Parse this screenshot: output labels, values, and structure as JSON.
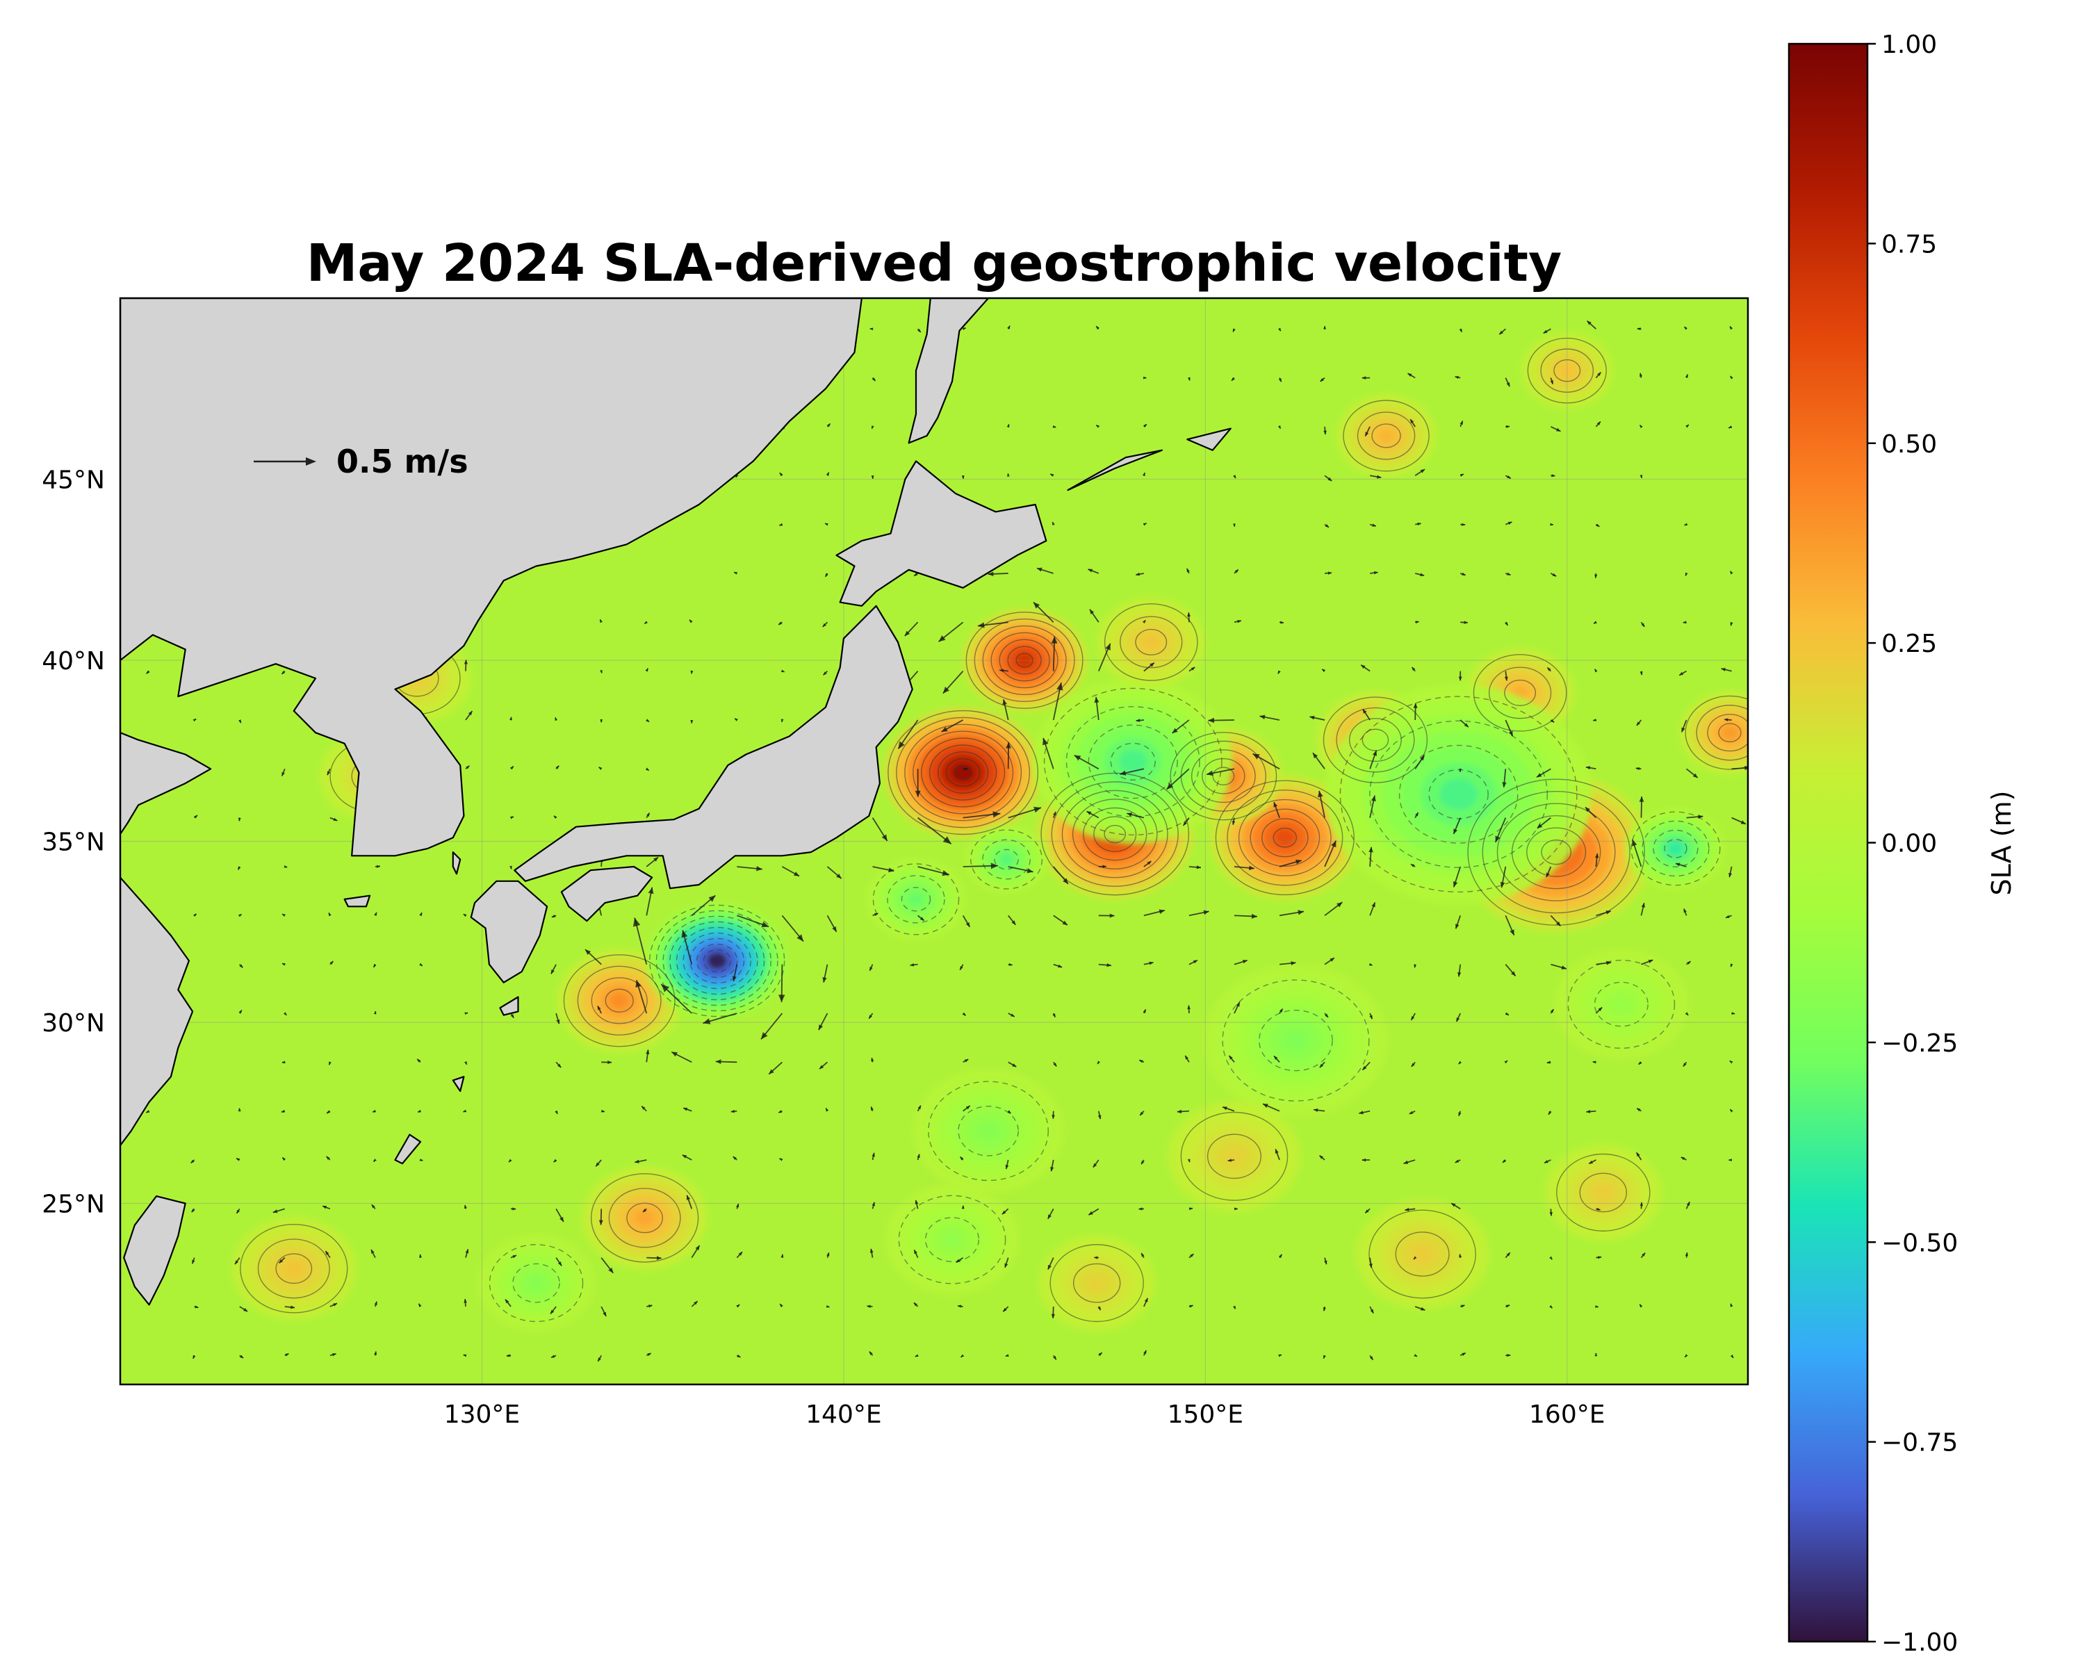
{
  "title": "May 2024 SLA-derived geostrophic velocity",
  "map": {
    "extent": {
      "lon": [
        120,
        165
      ],
      "lat": [
        20,
        50
      ]
    },
    "x_ticks": [
      {
        "lon": 130,
        "label": "130°E"
      },
      {
        "lon": 140,
        "label": "140°E"
      },
      {
        "lon": 150,
        "label": "150°E"
      },
      {
        "lon": 160,
        "label": "160°E"
      }
    ],
    "y_ticks": [
      {
        "lat": 45,
        "label": "45°N"
      },
      {
        "lat": 40,
        "label": "40°N"
      },
      {
        "lat": 35,
        "label": "35°N"
      },
      {
        "lat": 30,
        "label": "30°N"
      },
      {
        "lat": 25,
        "label": "25°N"
      }
    ],
    "land_color": "#d3d3d3",
    "gridlines": true,
    "field_colormap": "turbo"
  },
  "quiver_key": {
    "label": "0.5 m/s",
    "speed": 0.5
  },
  "colorbar": {
    "label": "SLA (m)",
    "range": [
      -1.0,
      1.0
    ],
    "ticks": [
      {
        "value": 1.0,
        "label": "1.00"
      },
      {
        "value": 0.75,
        "label": "0.75"
      },
      {
        "value": 0.5,
        "label": "0.50"
      },
      {
        "value": 0.25,
        "label": "0.25"
      },
      {
        "value": 0.0,
        "label": "0.00"
      },
      {
        "value": -0.25,
        "label": "−0.25"
      },
      {
        "value": -0.5,
        "label": "−0.50"
      },
      {
        "value": -0.75,
        "label": "−0.75"
      },
      {
        "value": -1.0,
        "label": "−1.00"
      }
    ],
    "colors": [
      "#30123b",
      "#4662d7",
      "#36aaf9",
      "#1ae4b6",
      "#72fe5e",
      "#a4fc3c",
      "#c7ef34",
      "#f9bd39",
      "#fb8022",
      "#e4460a",
      "#b11b01",
      "#7a0403"
    ]
  },
  "eddies": [
    {
      "lon": 143.3,
      "lat": 36.9,
      "sla": 0.92,
      "r": 1.9
    },
    {
      "lon": 145.0,
      "lat": 40.0,
      "sla": 0.72,
      "r": 1.5
    },
    {
      "lon": 147.5,
      "lat": 35.2,
      "sla": 0.68,
      "r": 1.9
    },
    {
      "lon": 152.2,
      "lat": 35.1,
      "sla": 0.62,
      "r": 1.8
    },
    {
      "lon": 150.5,
      "lat": 36.8,
      "sla": 0.5,
      "r": 1.4
    },
    {
      "lon": 159.7,
      "lat": 34.7,
      "sla": 0.58,
      "r": 2.3
    },
    {
      "lon": 154.7,
      "lat": 37.8,
      "sla": 0.42,
      "r": 1.4
    },
    {
      "lon": 158.7,
      "lat": 39.1,
      "sla": 0.32,
      "r": 1.3
    },
    {
      "lon": 164.5,
      "lat": 38.0,
      "sla": 0.38,
      "r": 1.2
    },
    {
      "lon": 133.8,
      "lat": 30.6,
      "sla": 0.42,
      "r": 1.5
    },
    {
      "lon": 134.5,
      "lat": 24.6,
      "sla": 0.34,
      "r": 1.5
    },
    {
      "lon": 124.8,
      "lat": 23.2,
      "sla": 0.25,
      "r": 1.5
    },
    {
      "lon": 136.5,
      "lat": 31.7,
      "sla": -0.98,
      "r": 1.7
    },
    {
      "lon": 148.0,
      "lat": 37.2,
      "sla": -0.36,
      "r": 2.4
    },
    {
      "lon": 142.0,
      "lat": 33.4,
      "sla": -0.3,
      "r": 1.2
    },
    {
      "lon": 144.5,
      "lat": 34.5,
      "sla": -0.34,
      "r": 1.0
    },
    {
      "lon": 157.0,
      "lat": 36.3,
      "sla": -0.36,
      "r": 3.2
    },
    {
      "lon": 163.0,
      "lat": 34.8,
      "sla": -0.42,
      "r": 1.2
    },
    {
      "lon": 152.5,
      "lat": 29.5,
      "sla": -0.22,
      "r": 2.2
    },
    {
      "lon": 144.0,
      "lat": 27.0,
      "sla": -0.2,
      "r": 1.8
    },
    {
      "lon": 131.5,
      "lat": 22.8,
      "sla": -0.2,
      "r": 1.4
    },
    {
      "lon": 127.0,
      "lat": 36.8,
      "sla": 0.2,
      "r": 1.3
    },
    {
      "lon": 128.2,
      "lat": 39.5,
      "sla": 0.22,
      "r": 1.3
    },
    {
      "lon": 147.0,
      "lat": 22.8,
      "sla": 0.2,
      "r": 1.4
    },
    {
      "lon": 150.8,
      "lat": 26.3,
      "sla": 0.2,
      "r": 1.6
    },
    {
      "lon": 156.0,
      "lat": 23.6,
      "sla": 0.22,
      "r": 1.6
    },
    {
      "lon": 161.0,
      "lat": 25.3,
      "sla": 0.22,
      "r": 1.4
    },
    {
      "lon": 155.0,
      "lat": 46.2,
      "sla": 0.3,
      "r": 1.2
    },
    {
      "lon": 160.0,
      "lat": 48.0,
      "sla": 0.26,
      "r": 1.1
    },
    {
      "lon": 148.5,
      "lat": 40.5,
      "sla": 0.25,
      "r": 1.3
    },
    {
      "lon": 143.0,
      "lat": 24.0,
      "sla": -0.16,
      "r": 1.6
    },
    {
      "lon": 161.5,
      "lat": 30.5,
      "sla": -0.14,
      "r": 1.6
    }
  ],
  "land": [
    {
      "name": "asia-mainland",
      "pts": [
        [
          120,
          50
        ],
        [
          140.5,
          50
        ],
        [
          140.3,
          48.5
        ],
        [
          139.5,
          47.5
        ],
        [
          138.5,
          46.6
        ],
        [
          137.5,
          45.5
        ],
        [
          136,
          44.3
        ],
        [
          134,
          43.2
        ],
        [
          132.5,
          42.8
        ],
        [
          131.5,
          42.6
        ],
        [
          130.6,
          42.2
        ],
        [
          129.9,
          41.1
        ],
        [
          129.5,
          40.4
        ],
        [
          128.6,
          39.6
        ],
        [
          127.6,
          39.2
        ],
        [
          128.3,
          38.6
        ],
        [
          129.4,
          37.1
        ],
        [
          129.5,
          35.7
        ],
        [
          129.2,
          35.1
        ],
        [
          128.5,
          34.8
        ],
        [
          127.6,
          34.6
        ],
        [
          126.4,
          34.6
        ],
        [
          126.5,
          35.8
        ],
        [
          126.6,
          36.9
        ],
        [
          126.2,
          37.7
        ],
        [
          125.4,
          38.0
        ],
        [
          124.8,
          38.6
        ],
        [
          125.4,
          39.5
        ],
        [
          124.3,
          39.9
        ],
        [
          122.8,
          39.4
        ],
        [
          121.6,
          39.0
        ],
        [
          121.8,
          40.3
        ],
        [
          120.9,
          40.7
        ],
        [
          120,
          40.0
        ]
      ]
    },
    {
      "name": "china-south",
      "pts": [
        [
          120,
          38
        ],
        [
          120.5,
          37.8
        ],
        [
          121.8,
          37.4
        ],
        [
          122.5,
          37.0
        ],
        [
          121.8,
          36.6
        ],
        [
          120.5,
          36.0
        ],
        [
          120.2,
          35.5
        ],
        [
          120,
          35.2
        ]
      ]
    },
    {
      "name": "china-coast",
      "pts": [
        [
          120,
          34.0
        ],
        [
          120.8,
          33.1
        ],
        [
          121.4,
          32.4
        ],
        [
          121.9,
          31.7
        ],
        [
          121.6,
          30.9
        ],
        [
          122.0,
          30.3
        ],
        [
          121.6,
          29.3
        ],
        [
          121.4,
          28.5
        ],
        [
          120.8,
          27.8
        ],
        [
          120.3,
          27.0
        ],
        [
          120,
          26.6
        ]
      ]
    },
    {
      "name": "honshu",
      "pts": [
        [
          130.9,
          34.2
        ],
        [
          131.6,
          34.7
        ],
        [
          132.6,
          35.4
        ],
        [
          133.8,
          35.5
        ],
        [
          135.3,
          35.6
        ],
        [
          136.0,
          35.9
        ],
        [
          136.8,
          37.1
        ],
        [
          137.3,
          37.4
        ],
        [
          138.5,
          37.9
        ],
        [
          139.5,
          38.7
        ],
        [
          139.9,
          39.8
        ],
        [
          140.0,
          40.6
        ],
        [
          140.9,
          41.5
        ],
        [
          141.5,
          40.5
        ],
        [
          141.9,
          39.2
        ],
        [
          141.5,
          38.3
        ],
        [
          140.9,
          37.6
        ],
        [
          141.0,
          36.6
        ],
        [
          140.7,
          35.7
        ],
        [
          139.8,
          35.1
        ],
        [
          139.1,
          34.7
        ],
        [
          138.3,
          34.6
        ],
        [
          137.0,
          34.6
        ],
        [
          136.0,
          33.8
        ],
        [
          135.2,
          33.7
        ],
        [
          135.0,
          34.6
        ],
        [
          134.0,
          34.6
        ],
        [
          132.5,
          34.3
        ],
        [
          131.2,
          33.9
        ]
      ]
    },
    {
      "name": "hokkaido",
      "pts": [
        [
          139.9,
          41.6
        ],
        [
          140.3,
          42.6
        ],
        [
          139.8,
          42.9
        ],
        [
          140.5,
          43.3
        ],
        [
          141.3,
          43.5
        ],
        [
          141.7,
          45.0
        ],
        [
          142.0,
          45.5
        ],
        [
          143.1,
          44.6
        ],
        [
          144.2,
          44.1
        ],
        [
          145.3,
          44.3
        ],
        [
          145.6,
          43.3
        ],
        [
          144.8,
          42.9
        ],
        [
          143.3,
          42.0
        ],
        [
          141.8,
          42.5
        ],
        [
          140.9,
          41.9
        ],
        [
          140.5,
          41.5
        ]
      ]
    },
    {
      "name": "sakhalin",
      "pts": [
        [
          141.8,
          46.0
        ],
        [
          142.0,
          46.8
        ],
        [
          142.0,
          48.0
        ],
        [
          142.3,
          49.0
        ],
        [
          142.4,
          50.0
        ],
        [
          144.0,
          50.0
        ],
        [
          143.2,
          49.1
        ],
        [
          143.0,
          47.7
        ],
        [
          142.6,
          46.7
        ],
        [
          142.3,
          46.2
        ]
      ]
    },
    {
      "name": "kyushu",
      "pts": [
        [
          129.8,
          33.3
        ],
        [
          130.4,
          33.9
        ],
        [
          131.0,
          33.9
        ],
        [
          131.8,
          33.2
        ],
        [
          131.6,
          32.4
        ],
        [
          131.1,
          31.4
        ],
        [
          130.6,
          31.1
        ],
        [
          130.2,
          31.6
        ],
        [
          130.1,
          32.6
        ],
        [
          129.7,
          32.9
        ]
      ]
    },
    {
      "name": "shikoku",
      "pts": [
        [
          132.2,
          33.6
        ],
        [
          133.0,
          34.2
        ],
        [
          134.2,
          34.3
        ],
        [
          134.7,
          34.0
        ],
        [
          134.3,
          33.5
        ],
        [
          133.4,
          33.3
        ],
        [
          132.9,
          32.8
        ],
        [
          132.4,
          33.2
        ]
      ]
    },
    {
      "name": "taiwan",
      "pts": [
        [
          121.0,
          25.2
        ],
        [
          121.8,
          25.0
        ],
        [
          121.6,
          24.1
        ],
        [
          121.2,
          23.0
        ],
        [
          120.8,
          22.2
        ],
        [
          120.4,
          22.7
        ],
        [
          120.1,
          23.5
        ],
        [
          120.4,
          24.4
        ]
      ]
    },
    {
      "name": "kuril-1",
      "pts": [
        [
          146.2,
          44.7
        ],
        [
          147.5,
          45.3
        ],
        [
          148.8,
          45.8
        ],
        [
          147.8,
          45.6
        ]
      ]
    },
    {
      "name": "kuril-2",
      "pts": [
        [
          149.5,
          46.1
        ],
        [
          150.7,
          46.4
        ],
        [
          150.2,
          45.8
        ]
      ]
    },
    {
      "name": "jeju",
      "pts": [
        [
          126.2,
          33.4
        ],
        [
          126.9,
          33.5
        ],
        [
          126.8,
          33.2
        ],
        [
          126.3,
          33.2
        ]
      ]
    },
    {
      "name": "tsushima",
      "pts": [
        [
          129.2,
          34.7
        ],
        [
          129.4,
          34.5
        ],
        [
          129.3,
          34.1
        ],
        [
          129.2,
          34.3
        ]
      ]
    },
    {
      "name": "tanegashima",
      "pts": [
        [
          130.5,
          30.4
        ],
        [
          131.0,
          30.7
        ],
        [
          131.0,
          30.3
        ],
        [
          130.6,
          30.2
        ]
      ]
    },
    {
      "name": "amami",
      "pts": [
        [
          129.2,
          28.4
        ],
        [
          129.5,
          28.5
        ],
        [
          129.4,
          28.1
        ]
      ]
    },
    {
      "name": "okinawa",
      "pts": [
        [
          127.6,
          26.2
        ],
        [
          128.0,
          26.9
        ],
        [
          128.3,
          26.7
        ],
        [
          127.8,
          26.1
        ]
      ]
    }
  ]
}
